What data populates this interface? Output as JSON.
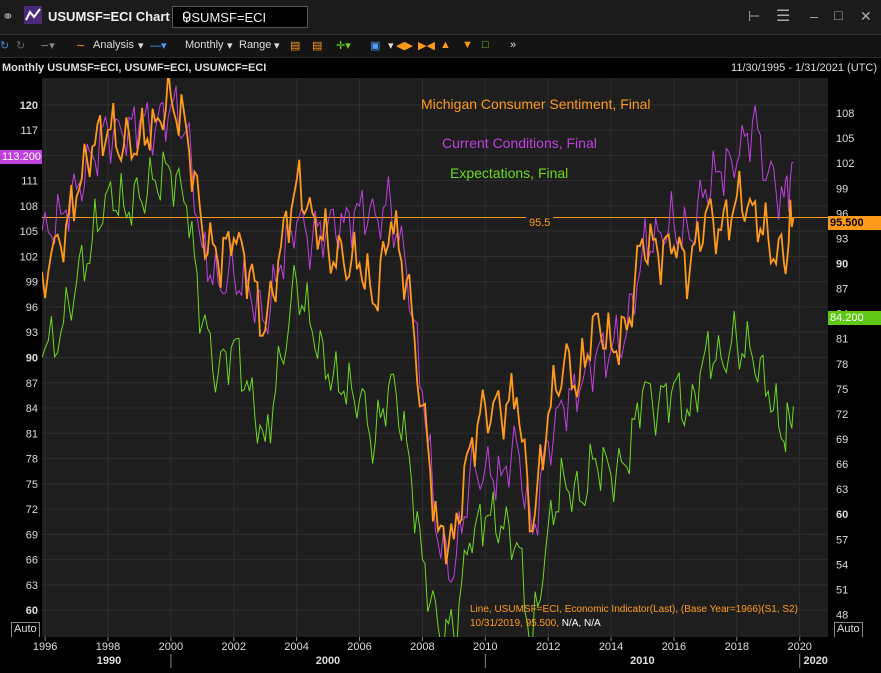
{
  "window": {
    "title": "USUMSF=ECI Chart",
    "ric_value": "USUMSF=ECI"
  },
  "toolbar": {
    "analysis_label": "Analysis",
    "interval_label": "Monthly",
    "range_label": "Range"
  },
  "header": {
    "series_label": "Monthly USUMSF=ECI, USUMF=ECI, USUMCF=ECI",
    "date_range": "11/30/1995 - 1/31/2021 (UTC)"
  },
  "legend": {
    "sentiment": "Michigan Consumer Sentiment, Final",
    "current": "Current Conditions, Final",
    "expectations": "Expectations, Final"
  },
  "badges": {
    "current_last": "113.200",
    "sentiment_last": "95.500",
    "expectations_last": "84.200",
    "reference_line": "95.5"
  },
  "info": {
    "line1": "Line, USUMSF=ECI, Economic Indicator(Last), (Base Year=1966)(S1, S2)",
    "line2_prefix": "10/31/2019, 95.500,",
    "line2_suffix": "N/A, N/A"
  },
  "auto_label": "Auto",
  "colors": {
    "sentiment": "#ff9a1a",
    "current": "#c040e0",
    "expectations": "#6ed820",
    "background": "#1e1e1e",
    "grid": "#2e2e2e"
  },
  "chart_data": {
    "type": "line",
    "left_axis": {
      "ticks": [
        "120",
        "117",
        "114",
        "111",
        "108",
        "105",
        "102",
        "99",
        "96",
        "93",
        "90",
        "87",
        "84",
        "81",
        "78",
        "75",
        "72",
        "69",
        "66",
        "63",
        "60"
      ],
      "ylim": [
        58,
        122
      ]
    },
    "right_axis": {
      "ticks": [
        "108",
        "105",
        "102",
        "99",
        "96",
        "93",
        "90",
        "87",
        "84",
        "81",
        "78",
        "75",
        "72",
        "69",
        "66",
        "63",
        "60",
        "57",
        "54",
        "51",
        "48"
      ],
      "ylim": [
        46.5,
        111
      ]
    },
    "x_ticks": [
      "1996",
      "1998",
      "2000",
      "2002",
      "2004",
      "2006",
      "2008",
      "2010",
      "2012",
      "2014",
      "2016",
      "2018",
      "2020"
    ],
    "x_decades": [
      "1990",
      "2000",
      "2010",
      "2020"
    ],
    "xlim": [
      1995.9,
      2020.9
    ],
    "reference_line": 95.5,
    "series": [
      {
        "name": "Michigan Consumer Sentiment, Final",
        "axis": "right",
        "x": [
          1995.9,
          1996.5,
          1997.0,
          1997.5,
          1998.0,
          1998.5,
          1999.0,
          1999.5,
          2000.0,
          2000.5,
          2001.0,
          2001.5,
          2002.0,
          2002.5,
          2003.0,
          2003.5,
          2004.0,
          2004.5,
          2005.0,
          2005.5,
          2006.0,
          2006.5,
          2007.0,
          2007.5,
          2008.0,
          2008.5,
          2009.0,
          2009.5,
          2010.0,
          2010.5,
          2011.0,
          2011.5,
          2012.0,
          2012.5,
          2013.0,
          2013.5,
          2014.0,
          2014.5,
          2015.0,
          2015.5,
          2016.0,
          2016.5,
          2017.0,
          2017.5,
          2018.0,
          2018.5,
          2019.0,
          2019.5,
          2019.8
        ],
        "values": [
          89,
          92,
          98,
          104,
          106,
          104,
          105,
          107,
          110,
          106,
          94,
          90,
          93,
          89,
          82,
          92,
          100,
          96,
          92,
          90,
          90,
          85,
          95,
          88,
          73,
          58,
          57,
          68,
          73,
          72,
          74,
          58,
          72,
          78,
          76,
          84,
          80,
          82,
          93,
          91,
          92,
          89,
          96,
          94,
          98,
          97,
          93,
          90,
          95.5
        ]
      },
      {
        "name": "Current Conditions, Final",
        "axis": "left",
        "x": [
          1995.9,
          1996.5,
          1997.0,
          1997.5,
          1998.0,
          1998.5,
          1999.0,
          1999.5,
          2000.0,
          2000.5,
          2001.0,
          2001.5,
          2002.0,
          2002.5,
          2003.0,
          2003.5,
          2004.0,
          2004.5,
          2005.0,
          2005.5,
          2006.0,
          2006.5,
          2007.0,
          2007.5,
          2008.0,
          2008.5,
          2009.0,
          2009.5,
          2010.0,
          2010.5,
          2011.0,
          2011.5,
          2012.0,
          2012.5,
          2013.0,
          2013.5,
          2014.0,
          2014.5,
          2015.0,
          2015.5,
          2016.0,
          2016.5,
          2017.0,
          2017.5,
          2018.0,
          2018.5,
          2019.0,
          2019.5,
          2019.8
        ],
        "values": [
          105,
          107,
          110,
          114,
          117,
          116,
          118,
          117,
          120,
          117,
          103,
          99,
          100,
          98,
          94,
          101,
          106,
          104,
          106,
          106,
          108,
          107,
          108,
          100,
          86,
          68,
          64,
          76,
          77,
          76,
          80,
          69,
          80,
          84,
          86,
          90,
          91,
          93,
          103,
          105,
          106,
          104,
          110,
          112,
          113,
          118,
          112,
          109,
          113.2
        ]
      },
      {
        "name": "Expectations, Final",
        "axis": "left",
        "x": [
          1995.9,
          1996.5,
          1997.0,
          1997.5,
          1998.0,
          1998.5,
          1999.0,
          1999.5,
          2000.0,
          2000.5,
          2001.0,
          2001.5,
          2002.0,
          2002.5,
          2003.0,
          2003.5,
          2004.0,
          2004.5,
          2005.0,
          2005.5,
          2006.0,
          2006.5,
          2007.0,
          2007.5,
          2008.0,
          2008.5,
          2009.0,
          2009.5,
          2010.0,
          2010.5,
          2011.0,
          2011.5,
          2012.0,
          2012.5,
          2013.0,
          2013.5,
          2014.0,
          2014.5,
          2015.0,
          2015.5,
          2016.0,
          2016.5,
          2017.0,
          2017.5,
          2018.0,
          2018.5,
          2019.0,
          2019.5,
          2019.8
        ],
        "values": [
          90,
          93,
          99,
          104,
          110,
          108,
          109,
          111,
          112,
          108,
          94,
          88,
          92,
          86,
          80,
          90,
          99,
          93,
          88,
          86,
          85,
          80,
          88,
          80,
          66,
          58,
          57,
          68,
          71,
          70,
          68,
          56,
          70,
          76,
          73,
          78,
          76,
          77,
          86,
          84,
          87,
          83,
          91,
          90,
          92,
          90,
          86,
          80,
          84.2
        ]
      }
    ]
  }
}
